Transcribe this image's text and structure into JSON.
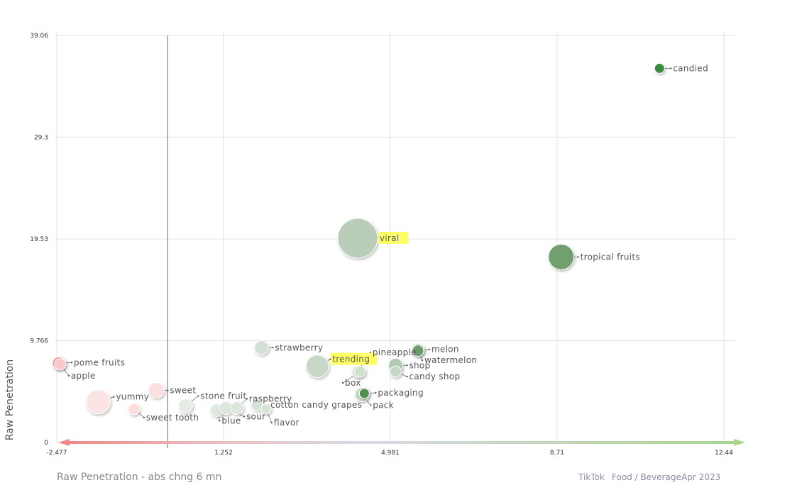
{
  "chart_data": {
    "type": "scatter",
    "title": "",
    "xlabel": "Raw Penetration - abs chng 6 mn",
    "ylabel": "Raw Penetration",
    "xlim": [
      -2.477,
      12.44
    ],
    "ylim": [
      0,
      39.06
    ],
    "x_ticks": [
      "-2.477",
      "1.252",
      "4.981",
      "8.71",
      "12.44"
    ],
    "y_ticks": [
      "0",
      "9.766",
      "19.53",
      "29.3",
      "39.06"
    ],
    "grid": true,
    "reference_x": 0,
    "points": [
      {
        "label": "candied",
        "x": 11.0,
        "y": 35.9,
        "size": 7,
        "color": "#3d8c3d",
        "highlight": false
      },
      {
        "label": "viral",
        "x": 4.25,
        "y": 19.6,
        "size": 28,
        "color": "#b9cdb9",
        "highlight": true
      },
      {
        "label": "tropical fruits",
        "x": 8.8,
        "y": 17.8,
        "size": 18,
        "color": "#6f9f6f",
        "highlight": false
      },
      {
        "label": "strawberry",
        "x": 2.1,
        "y": 9.1,
        "size": 10,
        "color": "#d4e0d4",
        "highlight": false
      },
      {
        "label": "trending",
        "x": 3.35,
        "y": 7.3,
        "size": 16,
        "color": "#c8d8c8",
        "highlight": true
      },
      {
        "label": "pineapple",
        "x": 4.25,
        "y": 6.8,
        "size": 8,
        "color": "#d2e0d2",
        "highlight": false
      },
      {
        "label": "melon",
        "x": 5.6,
        "y": 8.8,
        "size": 8,
        "color": "#6a9c6a",
        "highlight": false
      },
      {
        "label": "watermelon",
        "x": 5.6,
        "y": 8.9,
        "size": 9,
        "color": "#c8dac8",
        "highlight": false
      },
      {
        "label": "shop",
        "x": 5.1,
        "y": 7.4,
        "size": 10,
        "color": "#b2c9b2",
        "highlight": false
      },
      {
        "label": "candy shop",
        "x": 5.1,
        "y": 6.8,
        "size": 8,
        "color": "#c5d6c5",
        "highlight": false
      },
      {
        "label": "box",
        "x": 4.3,
        "y": 6.8,
        "size": 8,
        "color": "#d2e0d2",
        "highlight": false
      },
      {
        "label": "packaging",
        "x": 4.4,
        "y": 4.7,
        "size": 7,
        "color": "#4f8f4f",
        "highlight": false
      },
      {
        "label": "pack",
        "x": 4.35,
        "y": 4.6,
        "size": 10,
        "color": "#c5d6c5",
        "highlight": false
      },
      {
        "label": "pome fruits",
        "x": -2.43,
        "y": 7.6,
        "size": 9,
        "color": "#f29a9a",
        "highlight": false
      },
      {
        "label": "apple",
        "x": -2.4,
        "y": 7.5,
        "size": 8,
        "color": "#f7c8c8",
        "highlight": false
      },
      {
        "label": "yummy",
        "x": -1.55,
        "y": 3.9,
        "size": 17,
        "color": "#fde4e4",
        "highlight": false
      },
      {
        "label": "sweet",
        "x": -0.25,
        "y": 5.0,
        "size": 11,
        "color": "#fde0e0",
        "highlight": false
      },
      {
        "label": "sweet tooth",
        "x": -0.75,
        "y": 3.2,
        "size": 8,
        "color": "#fbdddd",
        "highlight": false
      },
      {
        "label": "stone fruit",
        "x": 0.4,
        "y": 3.5,
        "size": 10,
        "color": "#e4ece4",
        "highlight": false
      },
      {
        "label": "blue",
        "x": 1.1,
        "y": 3.1,
        "size": 9,
        "color": "#dfe8df",
        "highlight": false
      },
      {
        "label": "sour",
        "x": 1.3,
        "y": 3.3,
        "size": 9,
        "color": "#dce6dc",
        "highlight": false
      },
      {
        "label": "raspberry",
        "x": 1.55,
        "y": 3.3,
        "size": 9,
        "color": "#dce6dc",
        "highlight": false
      },
      {
        "label": "cotton candy grapes",
        "x": 2.0,
        "y": 3.6,
        "size": 8,
        "color": "#d6e2d6",
        "highlight": false
      },
      {
        "label": "flavor",
        "x": 2.2,
        "y": 3.2,
        "size": 7,
        "color": "#d6e2d6",
        "highlight": false
      }
    ]
  },
  "footer": {
    "platform": "TikTok",
    "category": "Food / Beverage",
    "period": "Apr 2023"
  }
}
